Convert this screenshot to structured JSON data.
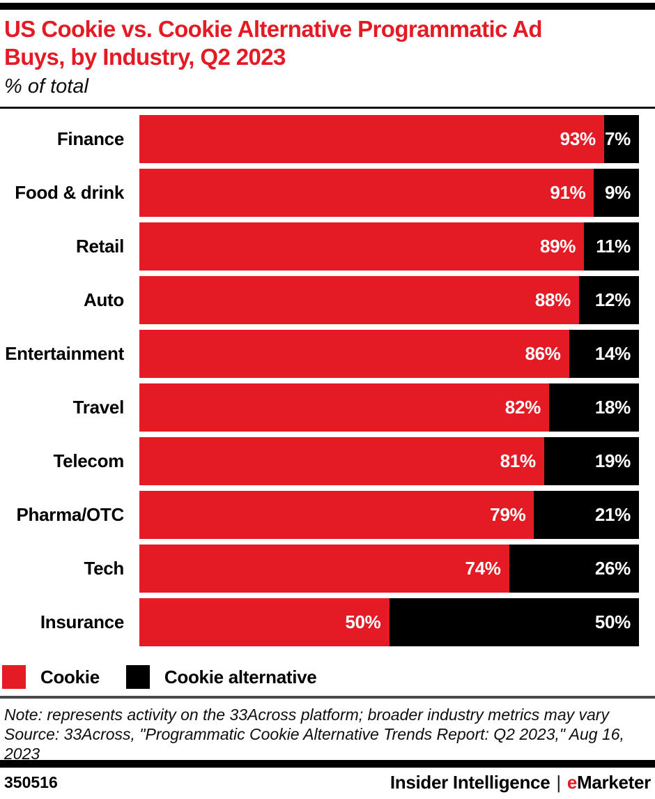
{
  "colors": {
    "cookie_red": "#E41B24",
    "alternative_black": "#000000",
    "rule_gray": "#4A4A4A"
  },
  "header": {
    "title_lines": [
      "US Cookie vs. Cookie Alternative Programmatic Ad",
      "Buys, by Industry, Q2 2023"
    ],
    "title_full": "US Cookie vs. Cookie Alternative Programmatic Ad Buys, by Industry, Q2 2023",
    "subtitle": "% of total"
  },
  "chart_data": {
    "type": "bar",
    "orientation": "horizontal",
    "stacked": true,
    "value_unit": "%",
    "xlim": [
      0,
      100
    ],
    "grid": false,
    "legend_position": "bottom",
    "categories": [
      "Finance",
      "Food & drink",
      "Retail",
      "Auto",
      "Entertainment",
      "Travel",
      "Telecom",
      "Pharma/OTC",
      "Tech",
      "Insurance"
    ],
    "series": [
      {
        "name": "Cookie",
        "color": "#E41B24",
        "values": [
          93,
          91,
          89,
          88,
          86,
          82,
          81,
          79,
          74,
          50
        ]
      },
      {
        "name": "Cookie alternative",
        "color": "#000000",
        "values": [
          7,
          9,
          11,
          12,
          14,
          18,
          19,
          21,
          26,
          50
        ]
      }
    ]
  },
  "legend": [
    {
      "label": "Cookie",
      "color": "#E41B24"
    },
    {
      "label": "Cookie alternative",
      "color": "#000000"
    }
  ],
  "notes": {
    "note": "Note: represents activity on the 33Across platform; broader industry metrics may vary",
    "source": "Source: 33Across, \"Programmatic Cookie Alternative Trends Report: Q2 2023,\" Aug 16, 2023"
  },
  "footer": {
    "chart_id": "350516",
    "brand_left": "Insider Intelligence",
    "brand_separator": "|",
    "brand_right_prefix": "e",
    "brand_right_rest": "Marketer"
  }
}
